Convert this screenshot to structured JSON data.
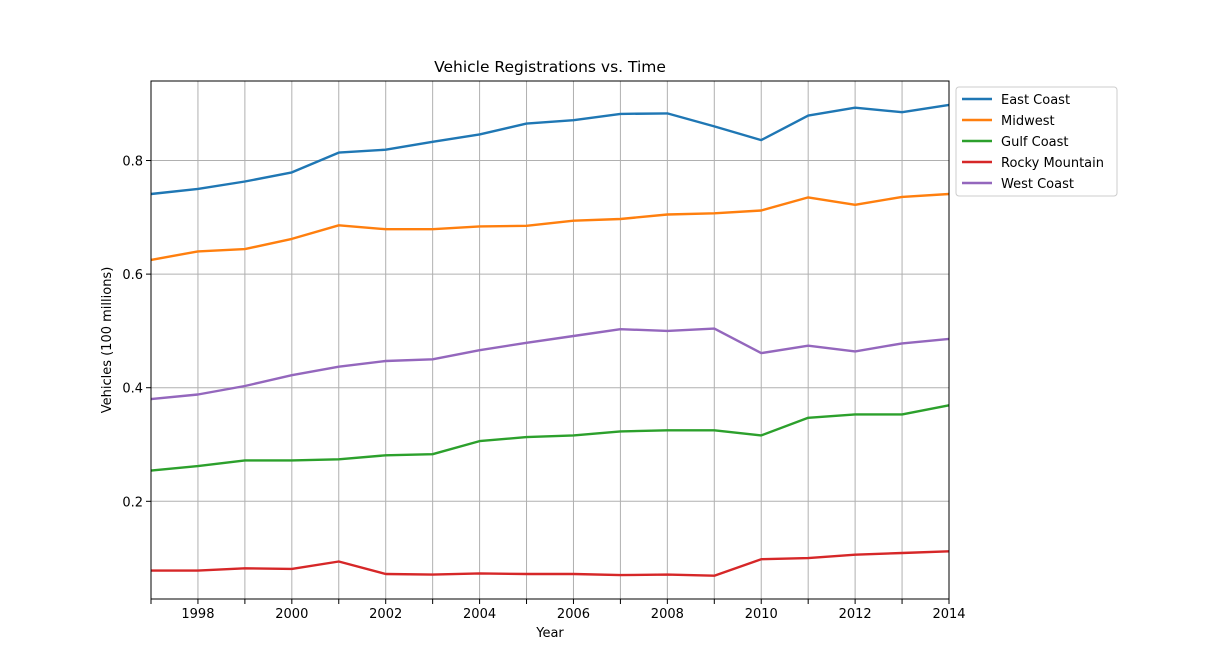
{
  "chart_data": {
    "type": "line",
    "title": "Vehicle Registrations vs. Time",
    "xlabel": "Year",
    "ylabel": "Vehicles (100 millions)",
    "x": [
      1997,
      1998,
      1999,
      2000,
      2001,
      2002,
      2003,
      2004,
      2005,
      2006,
      2007,
      2008,
      2009,
      2010,
      2011,
      2012,
      2013,
      2014
    ],
    "xlim": [
      1997,
      2014
    ],
    "ylim": [
      0.028,
      0.94
    ],
    "x_ticks": [
      1998,
      2000,
      2002,
      2004,
      2006,
      2008,
      2010,
      2012,
      2014
    ],
    "x_tick_labels": [
      "1998",
      "2000",
      "2002",
      "2004",
      "2006",
      "2008",
      "2010",
      "2012",
      "2014"
    ],
    "y_ticks": [
      0.2,
      0.4,
      0.6,
      0.8
    ],
    "y_tick_labels": [
      "0.2",
      "0.4",
      "0.6",
      "0.8"
    ],
    "grid": true,
    "legend_position": "outside top-right",
    "series": [
      {
        "name": "East Coast",
        "color": "#1f77b4",
        "values": [
          0.741,
          0.75,
          0.763,
          0.779,
          0.814,
          0.819,
          0.833,
          0.846,
          0.865,
          0.871,
          0.882,
          0.883,
          0.86,
          0.836,
          0.879,
          0.893,
          0.885,
          0.898
        ]
      },
      {
        "name": "Midwest",
        "color": "#ff7f0e",
        "values": [
          0.625,
          0.64,
          0.644,
          0.662,
          0.686,
          0.679,
          0.679,
          0.684,
          0.685,
          0.694,
          0.697,
          0.705,
          0.707,
          0.712,
          0.735,
          0.722,
          0.736,
          0.741
        ]
      },
      {
        "name": "Gulf Coast",
        "color": "#2ca02c",
        "values": [
          0.254,
          0.262,
          0.272,
          0.272,
          0.274,
          0.281,
          0.283,
          0.306,
          0.313,
          0.316,
          0.323,
          0.325,
          0.325,
          0.316,
          0.347,
          0.353,
          0.353,
          0.369
        ]
      },
      {
        "name": "Rocky Mountain",
        "color": "#d62728",
        "values": [
          0.078,
          0.078,
          0.082,
          0.081,
          0.094,
          0.072,
          0.071,
          0.073,
          0.072,
          0.072,
          0.07,
          0.071,
          0.069,
          0.098,
          0.1,
          0.106,
          0.109,
          0.112
        ]
      },
      {
        "name": "West Coast",
        "color": "#9467bd",
        "values": [
          0.38,
          0.388,
          0.403,
          0.422,
          0.437,
          0.447,
          0.45,
          0.466,
          0.479,
          0.491,
          0.503,
          0.5,
          0.504,
          0.461,
          0.474,
          0.464,
          0.478,
          0.486
        ]
      }
    ]
  }
}
